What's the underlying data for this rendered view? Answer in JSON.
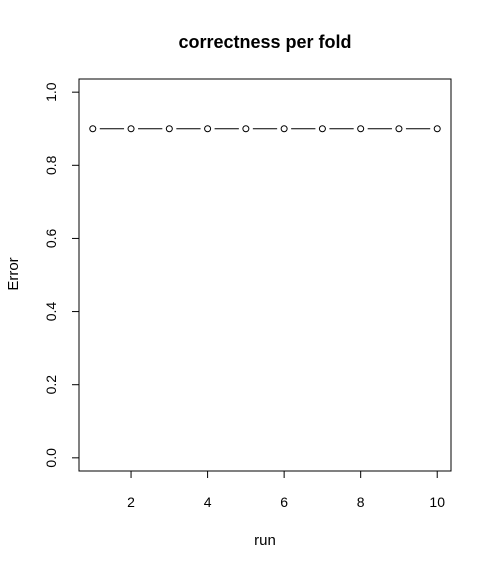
{
  "chart_data": {
    "type": "line",
    "title": "correctness per fold",
    "xlabel": "run",
    "ylabel": "Error",
    "xlim": [
      0.64,
      10.36
    ],
    "ylim": [
      -0.036,
      1.036
    ],
    "x_ticks": [
      2,
      4,
      6,
      8,
      10
    ],
    "x_tick_labels": [
      "2",
      "4",
      "6",
      "8",
      "10"
    ],
    "y_ticks": [
      0.0,
      0.2,
      0.4,
      0.6,
      0.8,
      1.0
    ],
    "y_tick_labels": [
      "0.0",
      "0.2",
      "0.4",
      "0.6",
      "0.8",
      "1.0"
    ],
    "grid": false,
    "marker": "open-circle",
    "line_style": "solid-with-gaps-at-points",
    "series": [
      {
        "x": [
          1,
          2,
          3,
          4,
          5,
          6,
          7,
          8,
          9,
          10
        ],
        "values": [
          0.9,
          0.9,
          0.9,
          0.9,
          0.9,
          0.9,
          0.9,
          0.9,
          0.9,
          0.9
        ],
        "color": "#000000"
      }
    ]
  }
}
